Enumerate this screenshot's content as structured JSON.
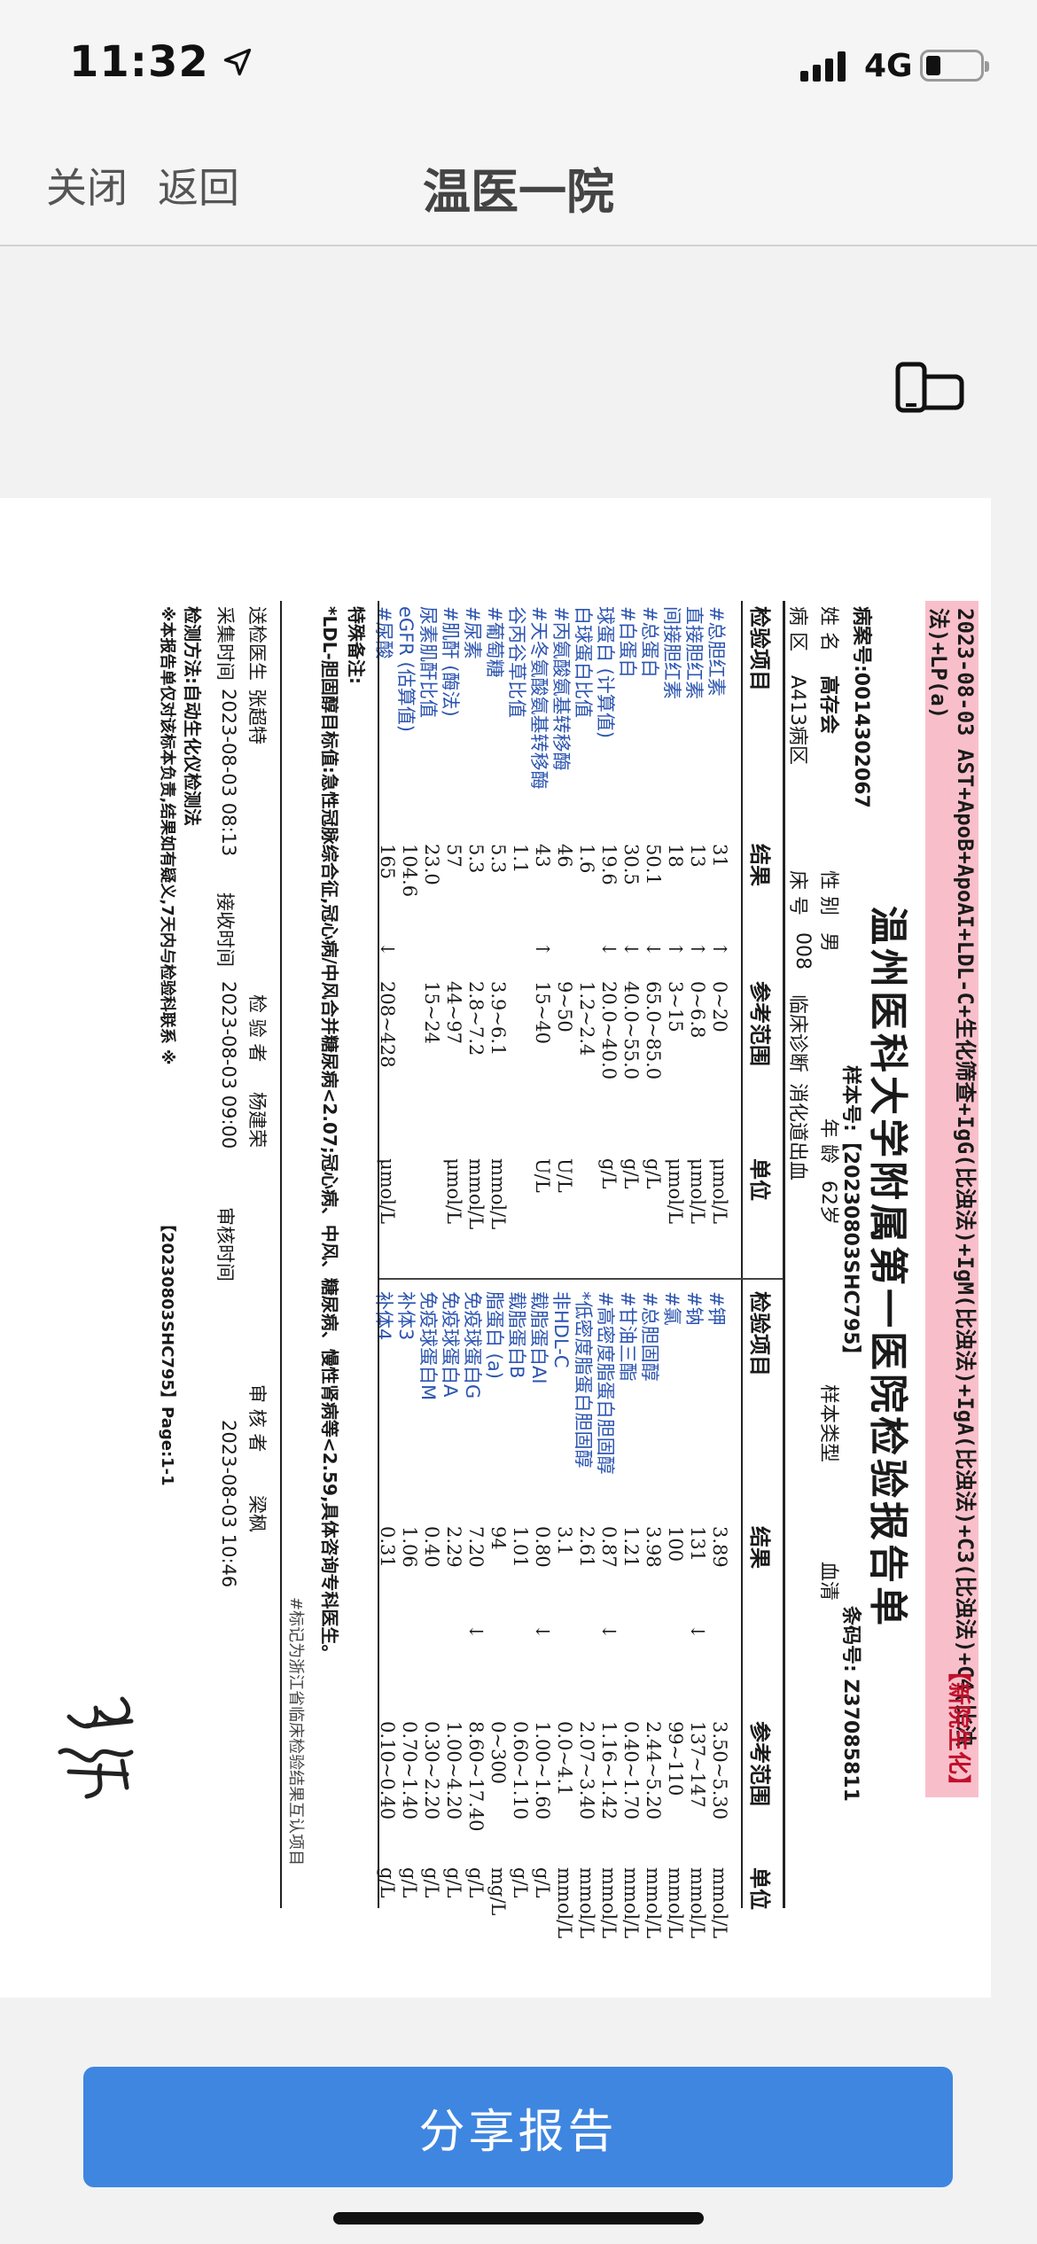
{
  "status_bar": {
    "time": "11:32",
    "network": "4G"
  },
  "nav": {
    "close_label": "关闭",
    "back_label": "返回",
    "title": "温医一院"
  },
  "report": {
    "banner": "2023-08-03 AST+ApoB+ApoAI+LDL-C+生化筛查+IgG(比浊法)+IgM(比浊法)+IgA(比浊法)+C3(比浊法)+C4(比浊法)+LP(a)",
    "tag": "【新院生化】",
    "title": "温州医科大学附属第一医院检验报告单",
    "record_no": "病案号:0014302067",
    "sample_no": "样本号:【20230803SHC795】",
    "barcode": "条码号: Z37085811",
    "name_label": "姓 名",
    "name": "高存会",
    "gender_label": "性 别",
    "gender": "男",
    "age_label": "年 龄",
    "age": "62岁",
    "sample_type_label": "样本类型",
    "sample_type": "血清",
    "ward_label": "病 区",
    "ward": "A413病区",
    "bed_label": "床 号",
    "bed": "008",
    "diagnosis_label": "临床诊断",
    "diagnosis": "消化道出血",
    "headers": [
      "检验项目",
      "结果",
      "参考范围",
      "单位",
      "检验项目",
      "结果",
      "参考范围",
      "单位"
    ],
    "left_rows": [
      {
        "item": "#总胆红素",
        "result": "31",
        "flag": "↑",
        "range": "0~20",
        "unit": "μmol/L"
      },
      {
        "item": "直接胆红素",
        "result": "13",
        "flag": "↑",
        "range": "0~6.8",
        "unit": "μmol/L"
      },
      {
        "item": "间接胆红素",
        "result": "18",
        "flag": "↑",
        "range": "3~15",
        "unit": "μmol/L"
      },
      {
        "item": "#总蛋白",
        "result": "50.1",
        "flag": "↓",
        "range": "65.0~85.0",
        "unit": "g/L"
      },
      {
        "item": "#白蛋白",
        "result": "30.5",
        "flag": "↓",
        "range": "40.0~55.0",
        "unit": "g/L"
      },
      {
        "item": "球蛋白 (计算值)",
        "result": "19.6",
        "flag": "↓",
        "range": "20.0~40.0",
        "unit": "g/L"
      },
      {
        "item": "白球蛋白比值",
        "result": "1.6",
        "flag": "",
        "range": "1.2~2.4",
        "unit": ""
      },
      {
        "item": "#丙氨酸氨基转移酶",
        "result": "46",
        "flag": "",
        "range": "9~50",
        "unit": "U/L"
      },
      {
        "item": "#天冬氨酸氨基转移酶",
        "result": "43",
        "flag": "↑",
        "range": "15~40",
        "unit": "U/L"
      },
      {
        "item": "谷丙谷草比值",
        "result": "1.1",
        "flag": "",
        "range": "",
        "unit": ""
      },
      {
        "item": "#葡萄糖",
        "result": "5.3",
        "flag": "",
        "range": "3.9~6.1",
        "unit": "mmol/L"
      },
      {
        "item": "#尿素",
        "result": "5.3",
        "flag": "",
        "range": "2.8~7.2",
        "unit": "mmol/L"
      },
      {
        "item": "#肌酐 (酶法)",
        "result": "57",
        "flag": "",
        "range": "44~97",
        "unit": "μmol/L"
      },
      {
        "item": "尿素肌酐比值",
        "result": "23.0",
        "flag": "",
        "range": "15~24",
        "unit": ""
      },
      {
        "item": "eGFR (估算值)",
        "result": "104.6",
        "flag": "",
        "range": "",
        "unit": ""
      },
      {
        "item": "#尿酸",
        "result": "165",
        "flag": "↓",
        "range": "208~428",
        "unit": "μmol/L"
      }
    ],
    "right_rows": [
      {
        "item": "#钾",
        "result": "3.89",
        "flag": "",
        "range": "3.50~5.30",
        "unit": "mmol/L"
      },
      {
        "item": "#钠",
        "result": "131",
        "flag": "↓",
        "range": "137~147",
        "unit": "mmol/L"
      },
      {
        "item": "#氯",
        "result": "100",
        "flag": "",
        "range": "99~110",
        "unit": "mmol/L"
      },
      {
        "item": "#总胆固醇",
        "result": "3.98",
        "flag": "",
        "range": "2.44~5.20",
        "unit": "mmol/L"
      },
      {
        "item": "#甘油三酯",
        "result": "1.21",
        "flag": "",
        "range": "0.40~1.70",
        "unit": "mmol/L"
      },
      {
        "item": "#高密度脂蛋白胆固醇",
        "result": "0.87",
        "flag": "↓",
        "range": "1.16~1.42",
        "unit": "mmol/L"
      },
      {
        "item": "*低密度脂蛋白胆固醇",
        "result": "2.61",
        "flag": "",
        "range": "2.07~3.40",
        "unit": "mmol/L"
      },
      {
        "item": "非HDL-C",
        "result": "3.1",
        "flag": "",
        "range": "0.0~4.1",
        "unit": "mmol/L"
      },
      {
        "item": "载脂蛋白AI",
        "result": "0.80",
        "flag": "↓",
        "range": "1.00~1.60",
        "unit": "g/L"
      },
      {
        "item": "载脂蛋白B",
        "result": "1.01",
        "flag": "",
        "range": "0.60~1.10",
        "unit": "g/L"
      },
      {
        "item": "脂蛋白 (a)",
        "result": "94",
        "flag": "",
        "range": "0~300",
        "unit": "mg/L"
      },
      {
        "item": "免疫球蛋白G",
        "result": "7.20",
        "flag": "↓",
        "range": "8.60~17.40",
        "unit": "g/L"
      },
      {
        "item": "免疫球蛋白A",
        "result": "2.29",
        "flag": "",
        "range": "1.00~4.20",
        "unit": "g/L"
      },
      {
        "item": "免疫球蛋白M",
        "result": "0.40",
        "flag": "",
        "range": "0.30~2.20",
        "unit": "g/L"
      },
      {
        "item": "补体3",
        "result": "1.06",
        "flag": "",
        "range": "0.70~1.40",
        "unit": "g/L"
      },
      {
        "item": "补体4",
        "result": "0.31",
        "flag": "",
        "range": "0.10~0.40",
        "unit": "g/L"
      }
    ],
    "notes_title": "特殊备注:",
    "notes_text": "*LDL-胆固醇目标值:急性冠脉综合征,冠心病/中风合并糖尿病<2.07;冠心病、中风、糖尿病、慢性肾病等<2.59,具体咨询专科医生。",
    "mark_note": "#标记为浙江省临床检验结果互认项目",
    "sender_label": "送检医生",
    "sender": "张超特",
    "tester_label": "检 验 者",
    "tester": "杨建荣",
    "reviewer_label": "审 核 者",
    "reviewer": "梁枫",
    "collect_label": "采集时间",
    "collect_time": "2023-08-03 08:13",
    "receive_label": "接收时间",
    "receive_time": "2023-08-03 09:00",
    "review_label": "审核时间",
    "review_time": "2023-08-03 10:46",
    "method": "检测方法:自动生化仪检测法",
    "disclaimer": "※本报告单仅对该标本负责,结果如有疑义,7天内与检验科联系 ※",
    "page_info": "【20230803SHC795】Page:1-1"
  },
  "share_label": "分享报告"
}
